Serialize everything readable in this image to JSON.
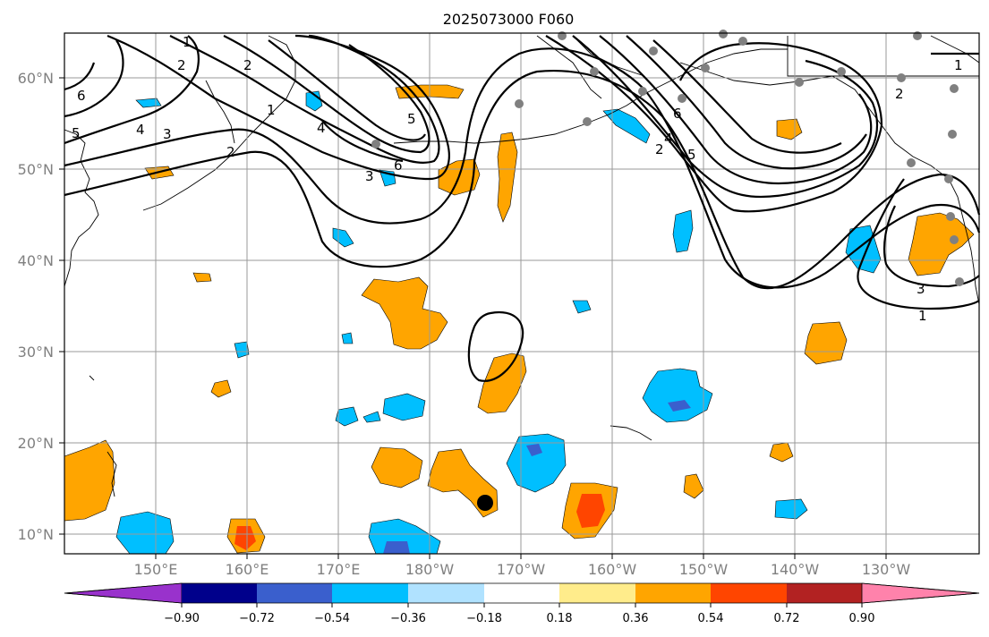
{
  "title": "2025073000 F060",
  "lat_labels": [
    "60°N",
    "50°N",
    "40°N",
    "30°N",
    "20°N",
    "10°N"
  ],
  "lon_labels": [
    "150°E",
    "160°E",
    "170°E",
    "180°W",
    "170°W",
    "160°W",
    "150°W",
    "140°W",
    "130°W"
  ],
  "colorbar": {
    "colors": [
      "#9932cc",
      "#00008b",
      "#3a5fcd",
      "#00bfff",
      "#b0e2ff",
      "#ffffff",
      "#ffec8b",
      "#ffa500",
      "#ff4500",
      "#b22222",
      "#ff82ab"
    ],
    "ticks": [
      "−0.90",
      "−0.72",
      "−0.54",
      "−0.36",
      "−0.18",
      "0.18",
      "0.36",
      "0.54",
      "0.72",
      "0.90"
    ]
  },
  "contour_labels": [
    "1",
    "2",
    "6",
    "5",
    "4",
    "3",
    "2",
    "4",
    "5",
    "6",
    "3",
    "2",
    "1",
    "6",
    "4",
    "2",
    "5",
    "1",
    "2",
    "3",
    "1"
  ],
  "colors": {
    "orange": "#ffa500",
    "red": "#ff4500",
    "darkred": "#b22222",
    "cyan": "#00bfff",
    "blue": "#3a5fcd",
    "lightblue": "#b0e2ff",
    "dot": "#808080"
  }
}
